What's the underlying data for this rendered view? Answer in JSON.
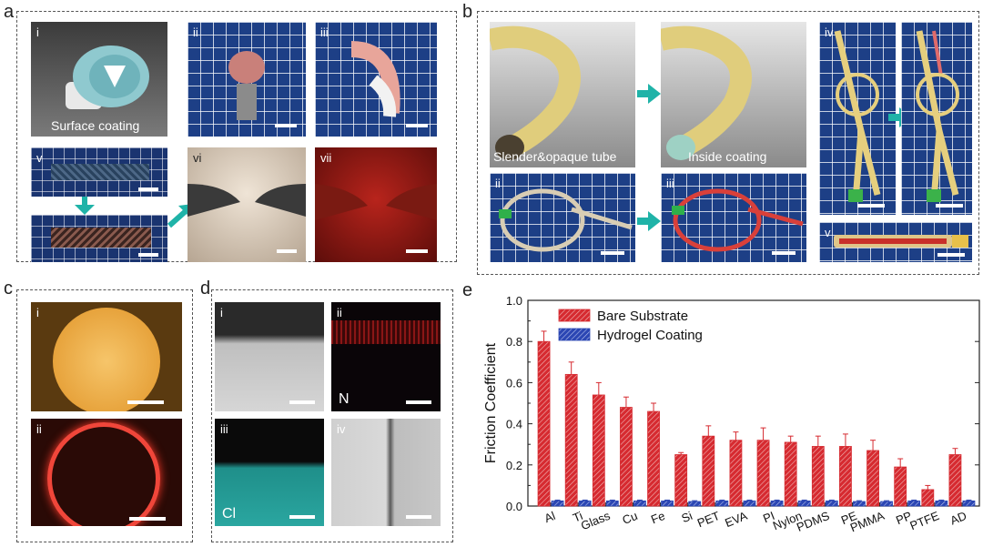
{
  "panels": {
    "a": {
      "letter": "a",
      "sub": {
        "i": "i",
        "ii": "ii",
        "iii": "iii",
        "v": "v",
        "vi": "vi",
        "vii": "vii"
      },
      "caption_i": "Surface coating"
    },
    "b": {
      "letter": "b",
      "sub": {
        "i": "i",
        "ii": "ii",
        "iii": "iii",
        "iv": "iv",
        "v": "v"
      },
      "caption_left": "Slender&opaque tube",
      "caption_right": "Inside coating"
    },
    "c": {
      "letter": "c",
      "sub": {
        "i": "i",
        "ii": "ii"
      }
    },
    "d": {
      "letter": "d",
      "sub": {
        "i": "i",
        "ii": "ii",
        "iii": "iii",
        "iv": "iv"
      },
      "element_n": "N",
      "element_cl": "Cl"
    },
    "e": {
      "letter": "e"
    }
  },
  "colors": {
    "bare": "#d62a30",
    "hydrogel": "#2b46b3",
    "arrow": "#1fb3a8"
  },
  "chart_data": {
    "type": "bar",
    "ylabel": "Friction Coefficient",
    "xlabel": "",
    "ylim": [
      0,
      1.0
    ],
    "yticks": [
      "0.0",
      "0.2",
      "0.4",
      "0.6",
      "0.8",
      "1.0"
    ],
    "categories": [
      "Al",
      "Ti",
      "Glass",
      "Cu",
      "Fe",
      "Si",
      "PET",
      "EVA",
      "PI",
      "Nylon",
      "PDMS",
      "PE",
      "PMMA",
      "PP",
      "PTFE",
      "AD"
    ],
    "series": [
      {
        "name": "Bare Substrate",
        "values": [
          0.8,
          0.64,
          0.54,
          0.48,
          0.46,
          0.25,
          0.34,
          0.32,
          0.32,
          0.31,
          0.29,
          0.29,
          0.27,
          0.19,
          0.08,
          0.25
        ],
        "errors": [
          0.05,
          0.06,
          0.06,
          0.05,
          0.04,
          0.01,
          0.05,
          0.04,
          0.06,
          0.03,
          0.05,
          0.06,
          0.05,
          0.04,
          0.02,
          0.03
        ]
      },
      {
        "name": "Hydrogel Coating",
        "values": [
          0.025,
          0.025,
          0.025,
          0.025,
          0.025,
          0.022,
          0.025,
          0.025,
          0.025,
          0.025,
          0.025,
          0.022,
          0.022,
          0.025,
          0.025,
          0.025
        ],
        "errors": [
          0.004,
          0.004,
          0.004,
          0.004,
          0.004,
          0.004,
          0.004,
          0.004,
          0.004,
          0.004,
          0.004,
          0.004,
          0.004,
          0.004,
          0.004,
          0.004
        ]
      }
    ],
    "legend": "top-left",
    "grid": false
  }
}
